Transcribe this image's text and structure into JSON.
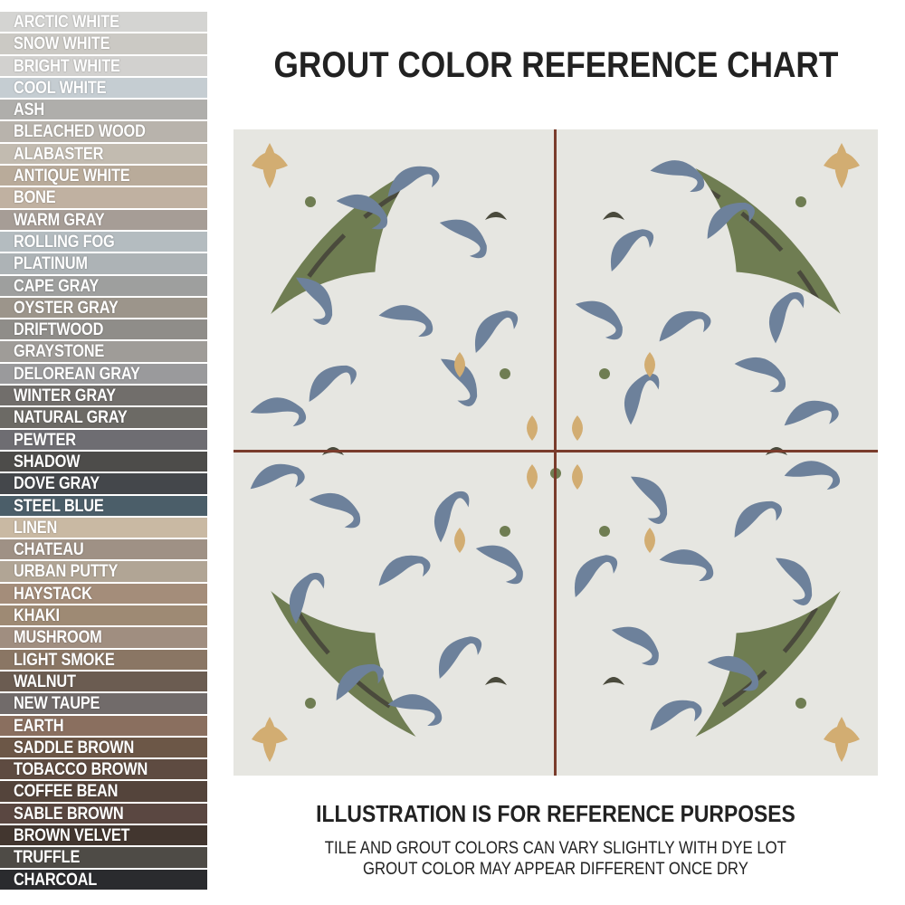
{
  "title": "GROUT COLOR REFERENCE CHART",
  "swatches": [
    {
      "name": "ARCTIC WHITE",
      "color": "#d4d4d2"
    },
    {
      "name": "SNOW WHITE",
      "color": "#cbc9c4"
    },
    {
      "name": "BRIGHT WHITE",
      "color": "#d2d1cf"
    },
    {
      "name": "COOL WHITE",
      "color": "#c5cdd2"
    },
    {
      "name": "ASH",
      "color": "#afaeab"
    },
    {
      "name": "BLEACHED WOOD",
      "color": "#b8b3ac"
    },
    {
      "name": "ALABASTER",
      "color": "#c2bbb0"
    },
    {
      "name": "ANTIQUE WHITE",
      "color": "#b9ab9a"
    },
    {
      "name": "BONE",
      "color": "#c0b1a1"
    },
    {
      "name": "WARM GRAY",
      "color": "#a69d96"
    },
    {
      "name": "ROLLING FOG",
      "color": "#b4bcc0"
    },
    {
      "name": "PLATINUM",
      "color": "#adb3b6"
    },
    {
      "name": "CAPE GRAY",
      "color": "#9e9f9e"
    },
    {
      "name": "OYSTER GRAY",
      "color": "#9c958b"
    },
    {
      "name": "DRIFTWOOD",
      "color": "#8f8d89"
    },
    {
      "name": "GRAYSTONE",
      "color": "#9f9c98"
    },
    {
      "name": "DELOREAN GRAY",
      "color": "#9a9a9c"
    },
    {
      "name": "WINTER GRAY",
      "color": "#716e6b"
    },
    {
      "name": "NATURAL GRAY",
      "color": "#6c6a65"
    },
    {
      "name": "PEWTER",
      "color": "#6e6d72"
    },
    {
      "name": "SHADOW",
      "color": "#4d4c4a"
    },
    {
      "name": "DOVE GRAY",
      "color": "#44474b"
    },
    {
      "name": "STEEL BLUE",
      "color": "#4b5e69"
    },
    {
      "name": "LINEN",
      "color": "#c9b9a3"
    },
    {
      "name": "CHATEAU",
      "color": "#9f9185"
    },
    {
      "name": "URBAN PUTTY",
      "color": "#b1a595"
    },
    {
      "name": "HAYSTACK",
      "color": "#a48d7a"
    },
    {
      "name": "KHAKI",
      "color": "#9e8a74"
    },
    {
      "name": "MUSHROOM",
      "color": "#a08e80"
    },
    {
      "name": "LIGHT SMOKE",
      "color": "#8a7664"
    },
    {
      "name": "WALNUT",
      "color": "#6b5c51"
    },
    {
      "name": "NEW TAUPE",
      "color": "#716b6a"
    },
    {
      "name": "EARTH",
      "color": "#8a6f5f"
    },
    {
      "name": "SADDLE BROWN",
      "color": "#6c5747"
    },
    {
      "name": "TOBACCO BROWN",
      "color": "#5e4b41"
    },
    {
      "name": "COFFEE BEAN",
      "color": "#54443b"
    },
    {
      "name": "SABLE BROWN",
      "color": "#5a4741"
    },
    {
      "name": "BROWN VELVET",
      "color": "#42362f"
    },
    {
      "name": "TRUFFLE",
      "color": "#4e4b46"
    },
    {
      "name": "CHARCOAL",
      "color": "#2a2b2e"
    }
  ],
  "tile": {
    "base": "#e6e6e1",
    "green": "#6f7d52",
    "blue": "#6d819b",
    "gold": "#d2ad72",
    "dark": "#4a4a3c",
    "grout": "#7a3c2c"
  },
  "notes": {
    "heading": "ILLUSTRATION IS FOR REFERENCE PURPOSES",
    "line1": "TILE AND GROUT COLORS CAN VARY SLIGHTLY WITH DYE LOT",
    "line2": "GROUT COLOR MAY APPEAR DIFFERENT ONCE DRY"
  }
}
